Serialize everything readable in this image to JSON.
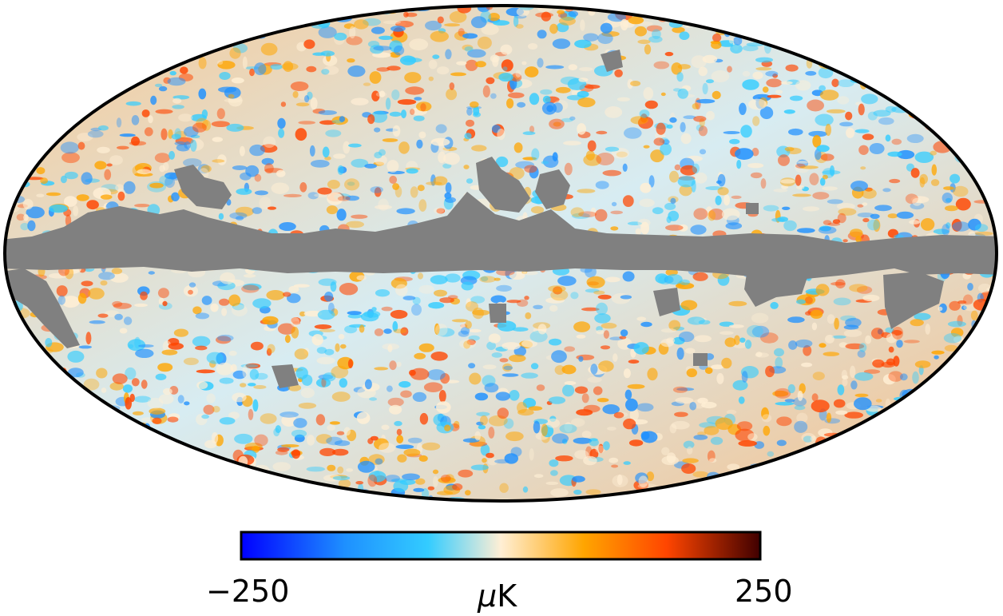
{
  "map": {
    "projection": "mollweide",
    "masked_region": "galactic-plane",
    "mask_color": "#808080",
    "outline_color": "#000000"
  },
  "colorbar": {
    "min_label": "−250",
    "max_label": "250",
    "unit_prefix": "μ",
    "unit_suffix": "K",
    "vmin": -250,
    "vmax": 250,
    "colors": [
      "#0000ff",
      "#1e90ff",
      "#33ccff",
      "#ffefd5",
      "#ffa500",
      "#ff4500",
      "#400000"
    ]
  }
}
